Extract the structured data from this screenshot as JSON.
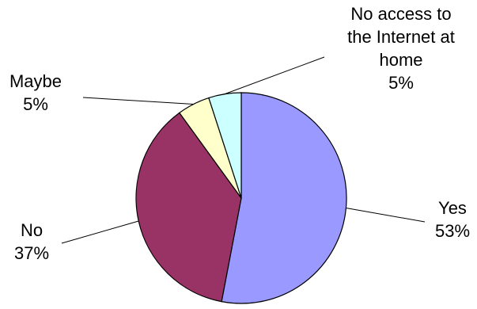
{
  "chart_data": {
    "type": "pie",
    "title": "",
    "start_angle_deg": 0,
    "direction": "clockwise",
    "slices": [
      {
        "label_lines": [
          "Yes"
        ],
        "value_label": "53%",
        "value": 53,
        "color": "#9999ff"
      },
      {
        "label_lines": [
          "No"
        ],
        "value_label": "37%",
        "value": 37,
        "color": "#993366"
      },
      {
        "label_lines": [
          "Maybe"
        ],
        "value_label": "5%",
        "value": 5,
        "color": "#ffffcc"
      },
      {
        "label_lines": [
          "No access to",
          "the Internet at",
          "home"
        ],
        "value_label": "5%",
        "value": 5,
        "color": "#ccffff"
      }
    ],
    "legend": "none",
    "label_style": "outside-with-leader-lines"
  }
}
